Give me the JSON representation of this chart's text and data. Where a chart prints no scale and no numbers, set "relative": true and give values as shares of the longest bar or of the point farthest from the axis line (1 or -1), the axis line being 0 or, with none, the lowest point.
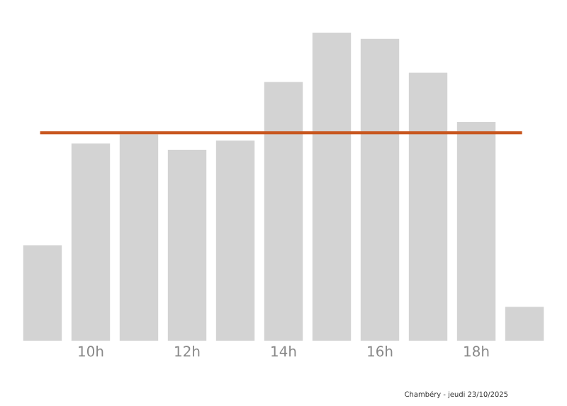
{
  "chart_data": {
    "type": "bar",
    "relative": true,
    "categories": [
      null,
      "10h",
      null,
      "12h",
      null,
      "14h",
      null,
      "16h",
      null,
      "18h",
      null
    ],
    "values": [
      0.31,
      0.64,
      0.67,
      0.62,
      0.65,
      0.84,
      1,
      0.98,
      0.87,
      0.71,
      0.11
    ],
    "color": "#d3d3d3",
    "ref_lines": [
      {
        "axis": "y",
        "value": 0.675,
        "color": "#c8561e"
      }
    ],
    "annotations": [
      "Chambéry - jeudi 23/10/2025"
    ]
  }
}
